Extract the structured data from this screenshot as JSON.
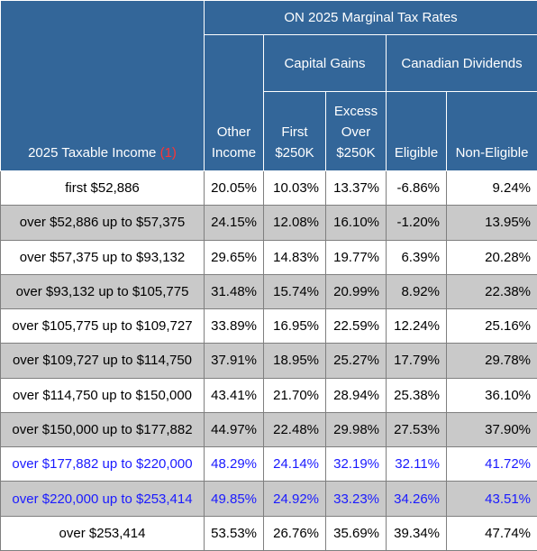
{
  "header": {
    "main_title": "ON 2025 Marginal Tax Rates",
    "income_label": "2025 Taxable Income",
    "income_note": "(1)",
    "other_income": [
      "Other",
      "Income"
    ],
    "capital_gains": "Capital Gains",
    "cg_first": [
      "First",
      "$250K"
    ],
    "cg_excess": [
      "Excess",
      "Over",
      "$250K"
    ],
    "canadian_dividends": "Canadian Dividends",
    "eligible": "Eligible",
    "non_eligible": "Non-Eligible"
  },
  "rows": [
    {
      "income": "first $52,886",
      "other": "20.05%",
      "cg_first": "10.03%",
      "cg_excess": "13.37%",
      "eligible": "-6.86%",
      "non_eligible": "9.24%"
    },
    {
      "income": "over $52,886 up to $57,375",
      "other": "24.15%",
      "cg_first": "12.08%",
      "cg_excess": "16.10%",
      "eligible": "-1.20%",
      "non_eligible": "13.95%"
    },
    {
      "income": "over $57,375 up to $93,132",
      "other": "29.65%",
      "cg_first": "14.83%",
      "cg_excess": "19.77%",
      "eligible": "6.39%",
      "non_eligible": "20.28%"
    },
    {
      "income": "over $93,132 up to $105,775",
      "other": "31.48%",
      "cg_first": "15.74%",
      "cg_excess": "20.99%",
      "eligible": "8.92%",
      "non_eligible": "22.38%"
    },
    {
      "income": "over $105,775 up to $109,727",
      "other": "33.89%",
      "cg_first": "16.95%",
      "cg_excess": "22.59%",
      "eligible": "12.24%",
      "non_eligible": "25.16%"
    },
    {
      "income": "over $109,727 up to $114,750",
      "other": "37.91%",
      "cg_first": "18.95%",
      "cg_excess": "25.27%",
      "eligible": "17.79%",
      "non_eligible": "29.78%"
    },
    {
      "income": "over $114,750 up to $150,000",
      "other": "43.41%",
      "cg_first": "21.70%",
      "cg_excess": "28.94%",
      "eligible": "25.38%",
      "non_eligible": "36.10%"
    },
    {
      "income": "over $150,000 up to $177,882",
      "other": "44.97%",
      "cg_first": "22.48%",
      "cg_excess": "29.98%",
      "eligible": "27.53%",
      "non_eligible": "37.90%"
    },
    {
      "income": "over $177,882 up to $220,000",
      "other": "48.29%",
      "cg_first": "24.14%",
      "cg_excess": "32.19%",
      "eligible": "32.11%",
      "non_eligible": "41.72%"
    },
    {
      "income": "over $220,000 up to $253,414",
      "other": "49.85%",
      "cg_first": "24.92%",
      "cg_excess": "33.23%",
      "eligible": "34.26%",
      "non_eligible": "43.51%"
    },
    {
      "income": "over $253,414",
      "other": "53.53%",
      "cg_first": "26.76%",
      "cg_excess": "35.69%",
      "eligible": "39.34%",
      "non_eligible": "47.74%"
    }
  ],
  "colors": {
    "header_bg": "#336699",
    "shaded_row": "#c9c9c9",
    "highlight_text": "#1a1aff",
    "note_red": "#ff3333"
  }
}
